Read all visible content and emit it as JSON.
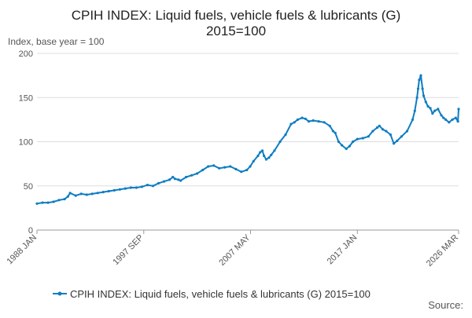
{
  "chart_data": {
    "type": "line",
    "title_line1": "CPIH INDEX: Liquid fuels, vehicle fuels & lubricants (G)",
    "title_line2": "2015=100",
    "ylabel": "Index, base year = 100",
    "xlabel": "",
    "ylim": [
      0,
      200
    ],
    "yticks": [
      0,
      50,
      100,
      150,
      200
    ],
    "grid": true,
    "xrange": [
      1988.0,
      2026.167
    ],
    "xticks": [
      {
        "label": "1988 JAN",
        "x": 1988.0
      },
      {
        "label": "1997 SEP",
        "x": 1997.667
      },
      {
        "label": "2007 MAY",
        "x": 2007.333
      },
      {
        "label": "2017 JAN",
        "x": 2017.0
      },
      {
        "label": "2026 MAR",
        "x": 2026.167
      }
    ],
    "legend_position": "bottom-center",
    "source_label": "Source:",
    "colors": {
      "series": "#0f7dc2",
      "grid": "#dddddd",
      "axis": "#999999",
      "text": "#333333",
      "tick_text": "#555555"
    },
    "series": [
      {
        "name": "CPIH INDEX: Liquid fuels, vehicle fuels & lubricants (G) 2015=100",
        "x": [
          1988.0,
          1988.5,
          1989.0,
          1989.5,
          1990.0,
          1990.5,
          1990.8,
          1991.0,
          1991.5,
          1992.0,
          1992.5,
          1993.0,
          1993.5,
          1994.0,
          1994.5,
          1995.0,
          1995.5,
          1996.0,
          1996.5,
          1997.0,
          1997.5,
          1998.0,
          1998.5,
          1999.0,
          1999.5,
          2000.0,
          2000.3,
          2000.5,
          2000.8,
          2001.0,
          2001.5,
          2002.0,
          2002.5,
          2003.0,
          2003.5,
          2004.0,
          2004.5,
          2005.0,
          2005.5,
          2006.0,
          2006.5,
          2007.0,
          2007.3,
          2007.6,
          2008.0,
          2008.2,
          2008.4,
          2008.55,
          2008.75,
          2009.0,
          2009.2,
          2009.5,
          2010.0,
          2010.5,
          2011.0,
          2011.3,
          2011.6,
          2012.0,
          2012.3,
          2012.6,
          2013.0,
          2013.5,
          2014.0,
          2014.5,
          2014.8,
          2015.0,
          2015.3,
          2015.6,
          2016.0,
          2016.3,
          2016.6,
          2017.0,
          2017.5,
          2018.0,
          2018.4,
          2018.8,
          2019.0,
          2019.3,
          2019.6,
          2020.0,
          2020.3,
          2020.6,
          2021.0,
          2021.5,
          2022.0,
          2022.2,
          2022.4,
          2022.5,
          2022.6,
          2022.75,
          2022.9,
          2023.0,
          2023.2,
          2023.4,
          2023.6,
          2023.8,
          2024.0,
          2024.3,
          2024.6,
          2024.8,
          2025.0,
          2025.3,
          2025.6,
          2025.9,
          2026.1,
          2026.167
        ],
        "values": [
          30,
          31,
          31,
          32,
          34,
          35,
          38,
          42,
          39,
          41,
          40,
          41,
          42,
          43,
          44,
          45,
          46,
          47,
          48,
          48,
          49,
          51,
          50,
          53,
          55,
          57,
          60,
          58,
          57,
          56,
          60,
          62,
          64,
          68,
          72,
          73,
          70,
          71,
          72,
          69,
          66,
          68,
          72,
          78,
          84,
          88,
          90,
          84,
          80,
          82,
          85,
          90,
          100,
          108,
          120,
          122,
          125,
          127,
          126,
          123,
          124,
          123,
          122,
          118,
          112,
          110,
          100,
          96,
          92,
          95,
          100,
          103,
          104,
          106,
          112,
          116,
          118,
          114,
          112,
          108,
          98,
          101,
          106,
          112,
          125,
          135,
          150,
          160,
          170,
          175,
          160,
          152,
          145,
          140,
          138,
          132,
          135,
          137,
          130,
          127,
          125,
          122,
          125,
          127,
          123,
          137
        ]
      }
    ]
  }
}
